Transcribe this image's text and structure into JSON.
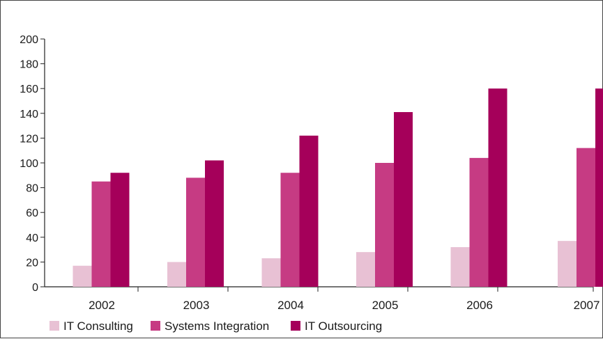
{
  "chart_data": {
    "type": "bar",
    "title": "",
    "xlabel": "",
    "ylabel": "",
    "categories": [
      "2002",
      "2003",
      "2004",
      "2005",
      "2006",
      "2007"
    ],
    "series": [
      {
        "name": "IT Consulting",
        "color": "#e8c1d4",
        "values": [
          17,
          20,
          23,
          28,
          32,
          37
        ]
      },
      {
        "name": "Systems Integration",
        "color": "#c63b83",
        "values": [
          85,
          88,
          92,
          100,
          104,
          112
        ]
      },
      {
        "name": "IT Outsourcing",
        "color": "#a5005a",
        "values": [
          92,
          102,
          122,
          141,
          160,
          160
        ]
      }
    ],
    "ylim": [
      0,
      200
    ],
    "yticks": [
      "0",
      "20",
      "40",
      "60",
      "80",
      "100",
      "120",
      "140",
      "160",
      "180",
      "200"
    ],
    "grid": false,
    "legend_position": "bottom-left"
  }
}
